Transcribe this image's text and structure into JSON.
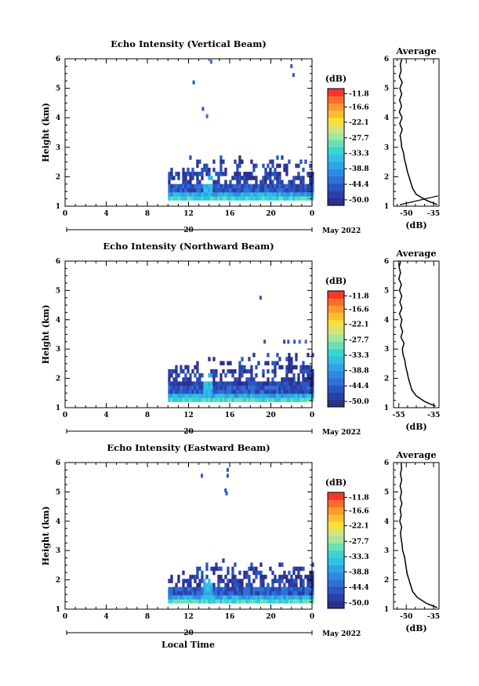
{
  "page": {
    "xlabel": "Local Time",
    "date_label": "May 2022",
    "day_label": "20"
  },
  "chart_data": [
    {
      "type": "heatmap",
      "title": "Echo Intensity (Vertical Beam)",
      "xlabel": "Local Time",
      "ylabel": "Height (km)",
      "x_ticks": [
        "0",
        "4",
        "8",
        "12",
        "16",
        "20",
        "0"
      ],
      "xlim": [
        0,
        24
      ],
      "ylim": [
        1,
        6
      ],
      "y_ticks": [
        "1",
        "2",
        "3",
        "4",
        "5",
        "6"
      ],
      "units": "dB",
      "colorbar_ticks": [
        "-11.8",
        "-16.6",
        "-22.1",
        "-27.7",
        "-33.3",
        "-38.8",
        "-44.4",
        "-50.0"
      ],
      "colorbar_range": [
        -52,
        -10
      ],
      "echo_region": {
        "start_hour": 10,
        "end_hour": 24,
        "top_km": 2.7,
        "base_km": 1.2
      },
      "scattered_points": [
        [
          12.5,
          5.2
        ],
        [
          13.4,
          4.3
        ],
        [
          13.8,
          4.05
        ],
        [
          14.2,
          5.9
        ],
        [
          22.0,
          5.75
        ],
        [
          22.2,
          5.45
        ]
      ],
      "profile": {
        "title": "Average",
        "xlabel": "(dB)",
        "x_ticks": [
          "-50",
          "-35"
        ],
        "xlim": [
          -57,
          -32
        ],
        "heights_km": [
          1.05,
          1.2,
          1.4,
          1.6,
          1.8,
          2.0,
          2.2,
          2.4,
          2.6,
          2.8,
          3.0,
          3.2,
          3.4,
          3.6,
          3.8,
          4.0,
          4.2,
          4.4,
          4.6,
          4.8,
          5.0,
          5.2,
          5.4,
          5.6,
          5.8,
          5.98
        ],
        "values_db": [
          -33,
          -39,
          -44.5,
          -46.5,
          -47.5,
          -48.5,
          -49.5,
          -50.2,
          -51,
          -51.5,
          -52.5,
          -52.8,
          -53.4,
          -52.2,
          -53.6,
          -52.3,
          -53.8,
          -52.6,
          -53.7,
          -52.5,
          -53.5,
          -52.2,
          -53.8,
          -52.8,
          -53.3,
          -52.5
        ],
        "noise_line_db": [
          [
            -53.5,
            1.05
          ],
          [
            -32.5,
            1.35
          ]
        ]
      }
    },
    {
      "type": "heatmap",
      "title": "Echo Intensity (Northward Beam)",
      "xlabel": "Local Time",
      "ylabel": "Height (km)",
      "x_ticks": [
        "0",
        "4",
        "8",
        "12",
        "16",
        "20",
        "0"
      ],
      "xlim": [
        0,
        24
      ],
      "ylim": [
        1,
        6
      ],
      "y_ticks": [
        "1",
        "2",
        "3",
        "4",
        "5",
        "6"
      ],
      "units": "dB",
      "colorbar_ticks": [
        "-11.8",
        "-16.6",
        "-22.1",
        "-27.7",
        "-33.3",
        "-38.8",
        "-44.4",
        "-50.0"
      ],
      "colorbar_range": [
        -52,
        -10
      ],
      "echo_region": {
        "start_hour": 10,
        "end_hour": 24,
        "top_km": 2.9,
        "base_km": 1.2
      },
      "scattered_points": [
        [
          19.0,
          4.75
        ],
        [
          19.4,
          3.25
        ],
        [
          21.3,
          3.25
        ],
        [
          21.7,
          3.25
        ],
        [
          22.3,
          3.25
        ],
        [
          22.8,
          3.25
        ],
        [
          23.4,
          3.25
        ]
      ],
      "profile": {
        "title": "Average",
        "xlabel": "(dB)",
        "x_ticks": [
          "-55",
          "-35"
        ],
        "xlim": [
          -58,
          -32
        ],
        "heights_km": [
          1.05,
          1.2,
          1.4,
          1.6,
          1.8,
          2.0,
          2.2,
          2.4,
          2.6,
          2.8,
          3.0,
          3.2,
          3.4,
          3.6,
          3.8,
          4.0,
          4.2,
          4.4,
          4.6,
          4.8,
          5.0,
          5.2,
          5.4,
          5.6,
          5.8,
          5.98
        ],
        "values_db": [
          -34,
          -40,
          -45,
          -47.5,
          -48.5,
          -49.5,
          -50.2,
          -51,
          -51.5,
          -52.5,
          -53,
          -52,
          -53.8,
          -52.8,
          -54,
          -53.2,
          -54.6,
          -53.2,
          -54.4,
          -53.3,
          -54.6,
          -53.5,
          -55,
          -54,
          -54.8,
          -54
        ]
      }
    },
    {
      "type": "heatmap",
      "title": "Echo Intensity (Eastward Beam)",
      "xlabel": "Local Time",
      "ylabel": "Height (km)",
      "x_ticks": [
        "0",
        "4",
        "8",
        "12",
        "16",
        "20",
        "0"
      ],
      "xlim": [
        0,
        24
      ],
      "ylim": [
        1,
        6
      ],
      "y_ticks": [
        "1",
        "2",
        "3",
        "4",
        "5",
        "6"
      ],
      "units": "dB",
      "colorbar_ticks": [
        "-11.8",
        "-16.6",
        "-22.1",
        "-27.7",
        "-33.3",
        "-38.8",
        "-44.4",
        "-50.0"
      ],
      "colorbar_range": [
        -52,
        -10
      ],
      "echo_region": {
        "start_hour": 10,
        "end_hour": 24,
        "top_km": 2.65,
        "base_km": 1.2
      },
      "scattered_points": [
        [
          13.3,
          5.55
        ],
        [
          15.8,
          5.75
        ],
        [
          15.8,
          5.55
        ],
        [
          15.6,
          5.05
        ],
        [
          15.7,
          4.95
        ]
      ],
      "profile": {
        "title": "Average",
        "xlabel": "(dB)",
        "x_ticks": [
          "-50",
          "-35"
        ],
        "xlim": [
          -57,
          -32
        ],
        "heights_km": [
          1.05,
          1.2,
          1.4,
          1.6,
          1.8,
          2.0,
          2.2,
          2.4,
          2.6,
          2.8,
          3.0,
          3.2,
          3.4,
          3.6,
          3.8,
          4.0,
          4.2,
          4.4,
          4.6,
          4.8,
          5.0,
          5.2,
          5.4,
          5.6,
          5.8,
          5.98
        ],
        "values_db": [
          -33,
          -39,
          -44,
          -46.5,
          -47.5,
          -48.5,
          -49.5,
          -50,
          -50.5,
          -51,
          -52,
          -52.3,
          -52.8,
          -53.2,
          -52.5,
          -53.6,
          -52.8,
          -53.4,
          -52.4,
          -53.3,
          -52.6,
          -53.4,
          -52.5,
          -53.2,
          -52.6,
          -52.8
        ]
      }
    }
  ]
}
